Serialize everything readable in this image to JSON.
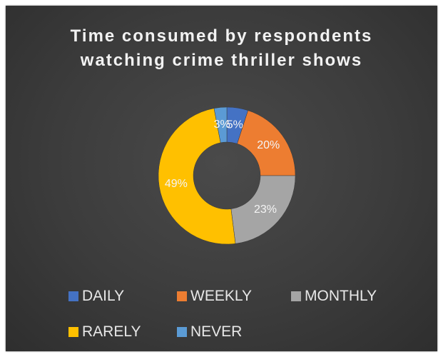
{
  "chart_data": {
    "type": "pie",
    "title_lines": [
      "Time consumed by respondents",
      "watching crime thriller shows"
    ],
    "categories": [
      "DAILY",
      "WEEKLY",
      "MONTHLY",
      "RARELY",
      "NEVER"
    ],
    "values": [
      5,
      20,
      23,
      49,
      3
    ],
    "data_labels": [
      "5%",
      "20%",
      "23%",
      "49%",
      "3%"
    ],
    "colors": [
      "#4472C4",
      "#ED7D31",
      "#A5A5A5",
      "#FFC000",
      "#5B9BD5"
    ],
    "donut": true,
    "legend_position": "bottom"
  }
}
